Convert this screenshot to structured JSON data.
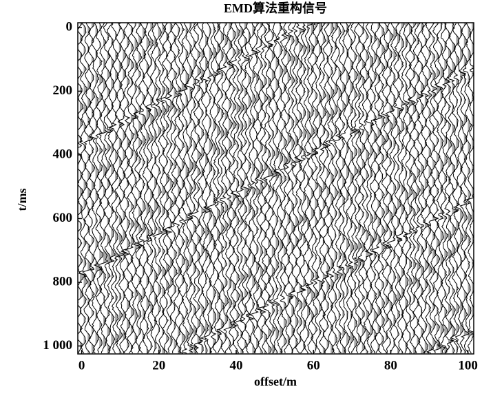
{
  "chart_data": {
    "type": "wiggle",
    "title": "EMD算法重构信号",
    "xlabel": "offset/m",
    "ylabel": "t/ms",
    "xlim": [
      -1,
      101.5
    ],
    "ylim": [
      -15,
      1025
    ],
    "xticks": [
      0,
      20,
      40,
      60,
      80,
      100
    ],
    "yticks": [
      0,
      200,
      400,
      600,
      800,
      {
        "value": 1000,
        "label": "1 000"
      }
    ],
    "y_inverted": true,
    "color": "#000000"
  }
}
